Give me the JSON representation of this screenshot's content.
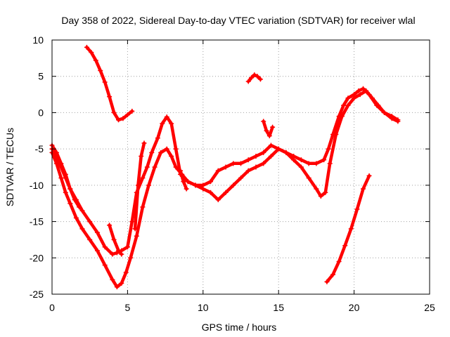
{
  "chart_data": {
    "type": "line",
    "title": "Day 358 of 2022, Sidereal Day-to-day VTEC variation (SDTVAR) for receiver wlal",
    "xlabel": "GPS time / hours",
    "ylabel": "SDTVAR / TECUs",
    "xlim": [
      0,
      25
    ],
    "ylim": [
      -25,
      10
    ],
    "xticks": [
      0,
      5,
      10,
      15,
      20,
      25
    ],
    "yticks": [
      -25,
      -20,
      -15,
      -10,
      -5,
      0,
      5,
      10
    ],
    "grid": true,
    "series_color": "#ff0000",
    "series": [
      {
        "x": [
          0.0,
          0.3,
          0.6,
          0.9,
          1.2,
          1.6,
          2.0,
          2.5,
          3.0,
          3.5,
          4.0,
          4.3,
          4.6,
          5.0,
          5.3,
          5.6,
          6.0,
          6.3,
          6.6,
          7.0,
          7.3,
          7.6,
          7.9,
          8.2,
          8.5,
          9.0,
          9.5,
          10.0,
          10.5,
          11.0,
          11.5,
          12.0,
          12.5,
          13.0,
          13.5,
          14.0,
          14.5,
          15.0,
          15.5,
          16.0,
          16.5,
          17.0,
          17.5,
          18.0,
          18.3,
          18.6,
          19.0,
          19.3,
          19.6,
          20.0,
          20.3,
          20.6,
          21.0,
          21.5,
          22.0,
          22.5,
          22.9
        ],
        "y": [
          -4.5,
          -5.5,
          -7,
          -8.5,
          -10.5,
          -12,
          -13.5,
          -15,
          -16.5,
          -18.5,
          -19.5,
          -19.3,
          -19,
          -18.5,
          -15,
          -11,
          -9,
          -7.5,
          -5.5,
          -3.5,
          -1.5,
          -0.6,
          -1.5,
          -5,
          -8.5,
          -9.5,
          -10,
          -10,
          -9.5,
          -8,
          -7.5,
          -7,
          -7,
          -6.5,
          -6,
          -5.5,
          -4.5,
          -5,
          -5.5,
          -6,
          -6.5,
          -7,
          -7,
          -6.5,
          -5,
          -3,
          -0.5,
          1,
          2,
          2.5,
          3,
          3.3,
          2.5,
          1,
          0,
          -0.5,
          -1
        ]
      },
      {
        "x": [
          0.0,
          0.3,
          0.6,
          0.9,
          1.2,
          1.6,
          2.0,
          2.5,
          3.0,
          3.5,
          4.0,
          4.3,
          4.6,
          4.9,
          5.2,
          5.6,
          6.0,
          6.4,
          6.8,
          7.2,
          7.6,
          7.9,
          8.2,
          8.6,
          9.0,
          9.5,
          10.0,
          10.5,
          11.0,
          11.5,
          12.0,
          12.5,
          13.0,
          13.5,
          14.0,
          14.5,
          15.0,
          15.5,
          16.0,
          16.5,
          17.0,
          17.5,
          17.8,
          18.1,
          18.4,
          18.8,
          19.2,
          19.6,
          20.0,
          20.4,
          20.8,
          21.2,
          21.6,
          22.0,
          22.5,
          22.9
        ],
        "y": [
          -5.5,
          -7,
          -9,
          -11,
          -12.5,
          -14.5,
          -16,
          -17.5,
          -19,
          -21,
          -23,
          -24,
          -23.5,
          -22,
          -20,
          -17,
          -13,
          -10,
          -7.5,
          -5.5,
          -5,
          -6,
          -7.5,
          -8.5,
          -9.5,
          -10,
          -10.5,
          -11,
          -12,
          -11,
          -10,
          -9,
          -8,
          -7.5,
          -7,
          -6,
          -5,
          -5.5,
          -6.5,
          -7.5,
          -9,
          -10.5,
          -11.5,
          -11,
          -7,
          -3,
          -0.5,
          1,
          2,
          2.5,
          3,
          2,
          1,
          0,
          -0.8,
          -1.2
        ]
      },
      {
        "x": [
          0.0,
          0.3,
          0.6,
          0.9,
          1.2,
          1.5,
          1.8
        ],
        "y": [
          -5,
          -6,
          -7.5,
          -9,
          -10.5,
          -12,
          -13
        ]
      },
      {
        "x": [
          2.3,
          2.6,
          2.9,
          3.2,
          3.5,
          3.8,
          4.1,
          4.4,
          4.7,
          5.0,
          5.3
        ],
        "y": [
          9,
          8.3,
          7.2,
          5.8,
          4.2,
          2.2,
          0,
          -1,
          -0.8,
          -0.3,
          0.2
        ]
      },
      {
        "x": [
          13.0,
          13.2,
          13.4,
          13.6,
          13.8
        ],
        "y": [
          4.3,
          4.8,
          5.2,
          5.0,
          4.6
        ]
      },
      {
        "x": [
          18.2,
          18.6,
          19.0,
          19.4,
          19.8,
          20.2,
          20.6,
          21.0
        ],
        "y": [
          -23.3,
          -22.3,
          -20.5,
          -18.3,
          -16,
          -13.3,
          -10.5,
          -8.7
        ]
      },
      {
        "x": [
          3.8,
          4.1,
          4.4,
          4.6
        ],
        "y": [
          -15.5,
          -17.5,
          -19,
          -19.5
        ]
      },
      {
        "x": [
          5.5,
          5.7,
          5.9,
          6.1
        ],
        "y": [
          -16,
          -10,
          -6,
          -4.2
        ]
      },
      {
        "x": [
          14.0,
          14.2,
          14.4,
          14.6
        ],
        "y": [
          -1.2,
          -2.5,
          -3.2,
          -2.0
        ]
      },
      {
        "x": [
          8.5,
          8.7,
          8.9
        ],
        "y": [
          -8,
          -9.5,
          -10.5
        ]
      }
    ]
  }
}
